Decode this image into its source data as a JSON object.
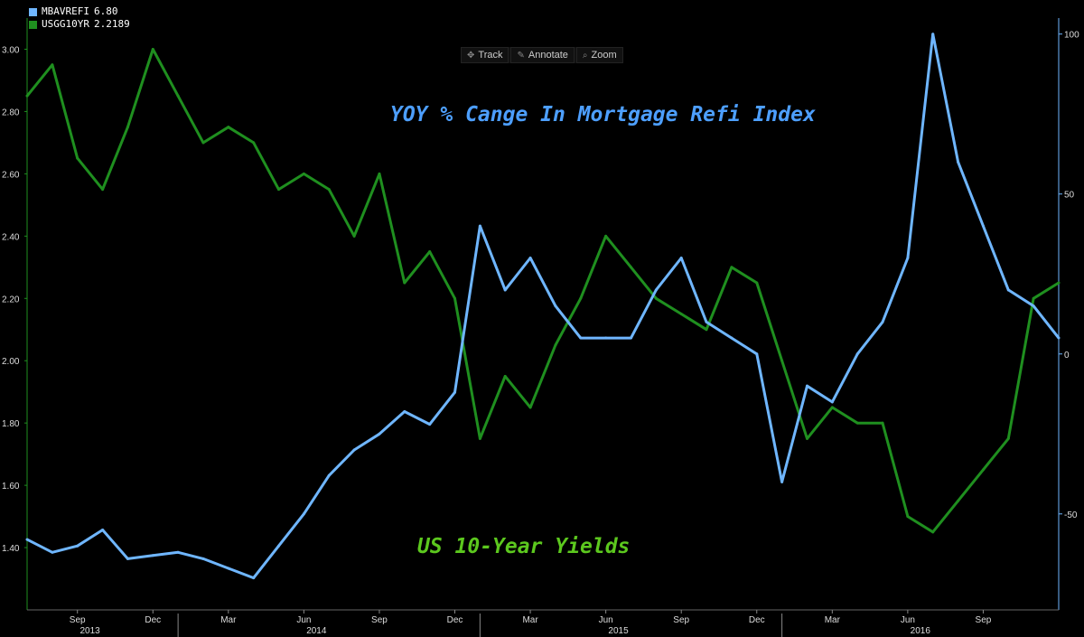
{
  "legend": [
    {
      "label": "MBAVREFI",
      "value": "6.80",
      "color": "#6fb6ff"
    },
    {
      "label": "USGG10YR",
      "value": "2.2189",
      "color": "#1f8f1f"
    }
  ],
  "toolbar": [
    {
      "label": "Track",
      "icon": "crosshair-icon"
    },
    {
      "label": "Annotate",
      "icon": "pencil-icon"
    },
    {
      "label": "Zoom",
      "icon": "magnifier-icon"
    }
  ],
  "annotations": {
    "refi": {
      "text": "YOY % Cange In Mortgage Refi Index",
      "color": "#4d9fff"
    },
    "yield": {
      "text": "US 10-Year Yields",
      "color": "#5cc81e"
    }
  },
  "chart_data": {
    "type": "line",
    "title": "",
    "left_axis": {
      "ylim": [
        1.2,
        3.1
      ],
      "ticks": [
        "3.00",
        "2.80",
        "2.60",
        "2.40",
        "2.20",
        "2.00",
        "1.80",
        "1.60",
        "1.40"
      ]
    },
    "right_axis": {
      "ylim": [
        -80,
        105
      ],
      "ticks": [
        "100",
        "50",
        "0",
        "-50"
      ]
    },
    "x_month_labels": [
      "Sep",
      "Dec",
      "Mar",
      "Jun",
      "Sep",
      "Dec",
      "Mar",
      "Jun",
      "Sep",
      "Dec",
      "Mar",
      "Jun",
      "Sep"
    ],
    "x_year_labels": [
      "2013",
      "2014",
      "2015",
      "2016"
    ],
    "x_range": [
      "2013-07",
      "2016-12"
    ],
    "grid": false,
    "legend_position": "top-left",
    "series": [
      {
        "name": "USGG10YR",
        "axis": "left",
        "color": "#1f8f1f",
        "x": [
          "2013-07",
          "2013-08",
          "2013-09",
          "2013-10",
          "2013-11",
          "2013-12",
          "2014-01",
          "2014-02",
          "2014-03",
          "2014-04",
          "2014-05",
          "2014-06",
          "2014-07",
          "2014-08",
          "2014-09",
          "2014-10",
          "2014-11",
          "2014-12",
          "2015-01",
          "2015-02",
          "2015-03",
          "2015-04",
          "2015-05",
          "2015-06",
          "2015-07",
          "2015-08",
          "2015-09",
          "2015-10",
          "2015-11",
          "2015-12",
          "2016-01",
          "2016-02",
          "2016-03",
          "2016-04",
          "2016-05",
          "2016-06",
          "2016-07",
          "2016-08",
          "2016-09",
          "2016-10",
          "2016-11",
          "2016-12"
        ],
        "values": [
          2.85,
          2.95,
          2.65,
          2.55,
          2.75,
          3.0,
          2.85,
          2.7,
          2.75,
          2.7,
          2.55,
          2.6,
          2.55,
          2.4,
          2.6,
          2.25,
          2.35,
          2.2,
          1.75,
          1.95,
          1.85,
          2.05,
          2.2,
          2.4,
          2.3,
          2.2,
          2.15,
          2.1,
          2.3,
          2.25,
          2.0,
          1.75,
          1.85,
          1.8,
          1.8,
          1.5,
          1.45,
          1.55,
          1.65,
          1.75,
          2.2,
          2.25
        ]
      },
      {
        "name": "MBAVREFI",
        "axis": "right",
        "color": "#6fb6ff",
        "x": [
          "2013-07",
          "2013-08",
          "2013-09",
          "2013-10",
          "2013-11",
          "2013-12",
          "2014-01",
          "2014-02",
          "2014-03",
          "2014-04",
          "2014-05",
          "2014-06",
          "2014-07",
          "2014-08",
          "2014-09",
          "2014-10",
          "2014-11",
          "2014-12",
          "2015-01",
          "2015-02",
          "2015-03",
          "2015-04",
          "2015-05",
          "2015-06",
          "2015-07",
          "2015-08",
          "2015-09",
          "2015-10",
          "2015-11",
          "2015-12",
          "2016-01",
          "2016-02",
          "2016-03",
          "2016-04",
          "2016-05",
          "2016-06",
          "2016-07",
          "2016-08",
          "2016-09",
          "2016-10",
          "2016-11",
          "2016-12"
        ],
        "values": [
          -58,
          -62,
          -60,
          -55,
          -64,
          -63,
          -62,
          -64,
          -67,
          -70,
          -60,
          -50,
          -38,
          -30,
          -25,
          -18,
          -22,
          -12,
          40,
          20,
          30,
          15,
          5,
          5,
          5,
          20,
          30,
          10,
          5,
          0,
          -40,
          -10,
          -15,
          0,
          10,
          30,
          100,
          60,
          40,
          20,
          15,
          5
        ]
      }
    ]
  }
}
